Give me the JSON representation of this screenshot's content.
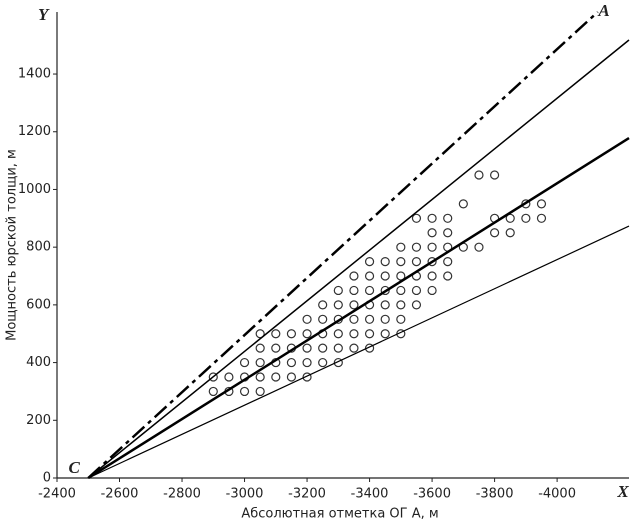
{
  "chart_data": {
    "type": "scatter",
    "xlabel": "Абсолютная отметка ОГ А, м",
    "ylabel": "Мощность юрской толщи, м",
    "x_axis_letter": "X",
    "y_axis_letter": "Y",
    "annotations": [
      {
        "text": "A",
        "x": -4150,
        "y": 1615
      },
      {
        "text": "C",
        "x": -2455,
        "y": 30
      }
    ],
    "xlim": [
      -2400,
      -4230
    ],
    "ylim": [
      0,
      1615
    ],
    "xticks": [
      -2400,
      -2600,
      -2800,
      -3000,
      -3200,
      -3400,
      -3600,
      -3800,
      -4000
    ],
    "yticks": [
      0,
      200,
      400,
      600,
      800,
      1000,
      1200,
      1400
    ],
    "series": [
      {
        "marker": "circle",
        "color": "#333333",
        "x": [
          -2900,
          -2950,
          -3000,
          -3050,
          -2900,
          -2950,
          -3000,
          -3050,
          -3100,
          -3150,
          -3200,
          -3000,
          -3050,
          -3100,
          -3150,
          -3200,
          -3250,
          -3300,
          -3050,
          -3100,
          -3150,
          -3200,
          -3250,
          -3300,
          -3350,
          -3400,
          -3050,
          -3100,
          -3150,
          -3200,
          -3250,
          -3300,
          -3350,
          -3400,
          -3450,
          -3500,
          -3200,
          -3250,
          -3300,
          -3350,
          -3400,
          -3450,
          -3500,
          -3250,
          -3300,
          -3350,
          -3400,
          -3450,
          -3500,
          -3550,
          -3300,
          -3350,
          -3400,
          -3450,
          -3500,
          -3550,
          -3600,
          -3350,
          -3400,
          -3450,
          -3500,
          -3550,
          -3600,
          -3650,
          -3400,
          -3450,
          -3500,
          -3550,
          -3600,
          -3650,
          -3500,
          -3550,
          -3600,
          -3650,
          -3700,
          -3750,
          -3600,
          -3650,
          -3800,
          -3850,
          -3550,
          -3600,
          -3650,
          -3800,
          -3850,
          -3900,
          -3950,
          -3700,
          -3900,
          -3950,
          -3750,
          -3800
        ],
        "values": [
          300,
          300,
          300,
          300,
          350,
          350,
          350,
          350,
          350,
          350,
          350,
          400,
          400,
          400,
          400,
          400,
          400,
          400,
          450,
          450,
          450,
          450,
          450,
          450,
          450,
          450,
          500,
          500,
          500,
          500,
          500,
          500,
          500,
          500,
          500,
          500,
          550,
          550,
          550,
          550,
          550,
          550,
          550,
          600,
          600,
          600,
          600,
          600,
          600,
          600,
          650,
          650,
          650,
          650,
          650,
          650,
          650,
          700,
          700,
          700,
          700,
          700,
          700,
          700,
          750,
          750,
          750,
          750,
          750,
          750,
          800,
          800,
          800,
          800,
          800,
          800,
          850,
          850,
          850,
          850,
          900,
          900,
          900,
          900,
          900,
          900,
          900,
          950,
          950,
          950,
          1050,
          1050
        ]
      },
      {
        "style": "dash-dot",
        "width": 2.5,
        "color": "#000000",
        "x": [
          -2500,
          -4130
        ],
        "values": [
          0,
          1615
        ]
      },
      {
        "style": "solid",
        "width": 1.5,
        "color": "#000000",
        "x": [
          -2500,
          -4230
        ],
        "values": [
          0,
          1518
        ]
      },
      {
        "style": "solid",
        "width": 2.5,
        "color": "#000000",
        "x": [
          -2500,
          -4230
        ],
        "values": [
          0,
          1178
        ]
      },
      {
        "style": "solid",
        "width": 1.2,
        "color": "#000000",
        "x": [
          -2500,
          -4230
        ],
        "values": [
          0,
          873
        ]
      }
    ]
  }
}
